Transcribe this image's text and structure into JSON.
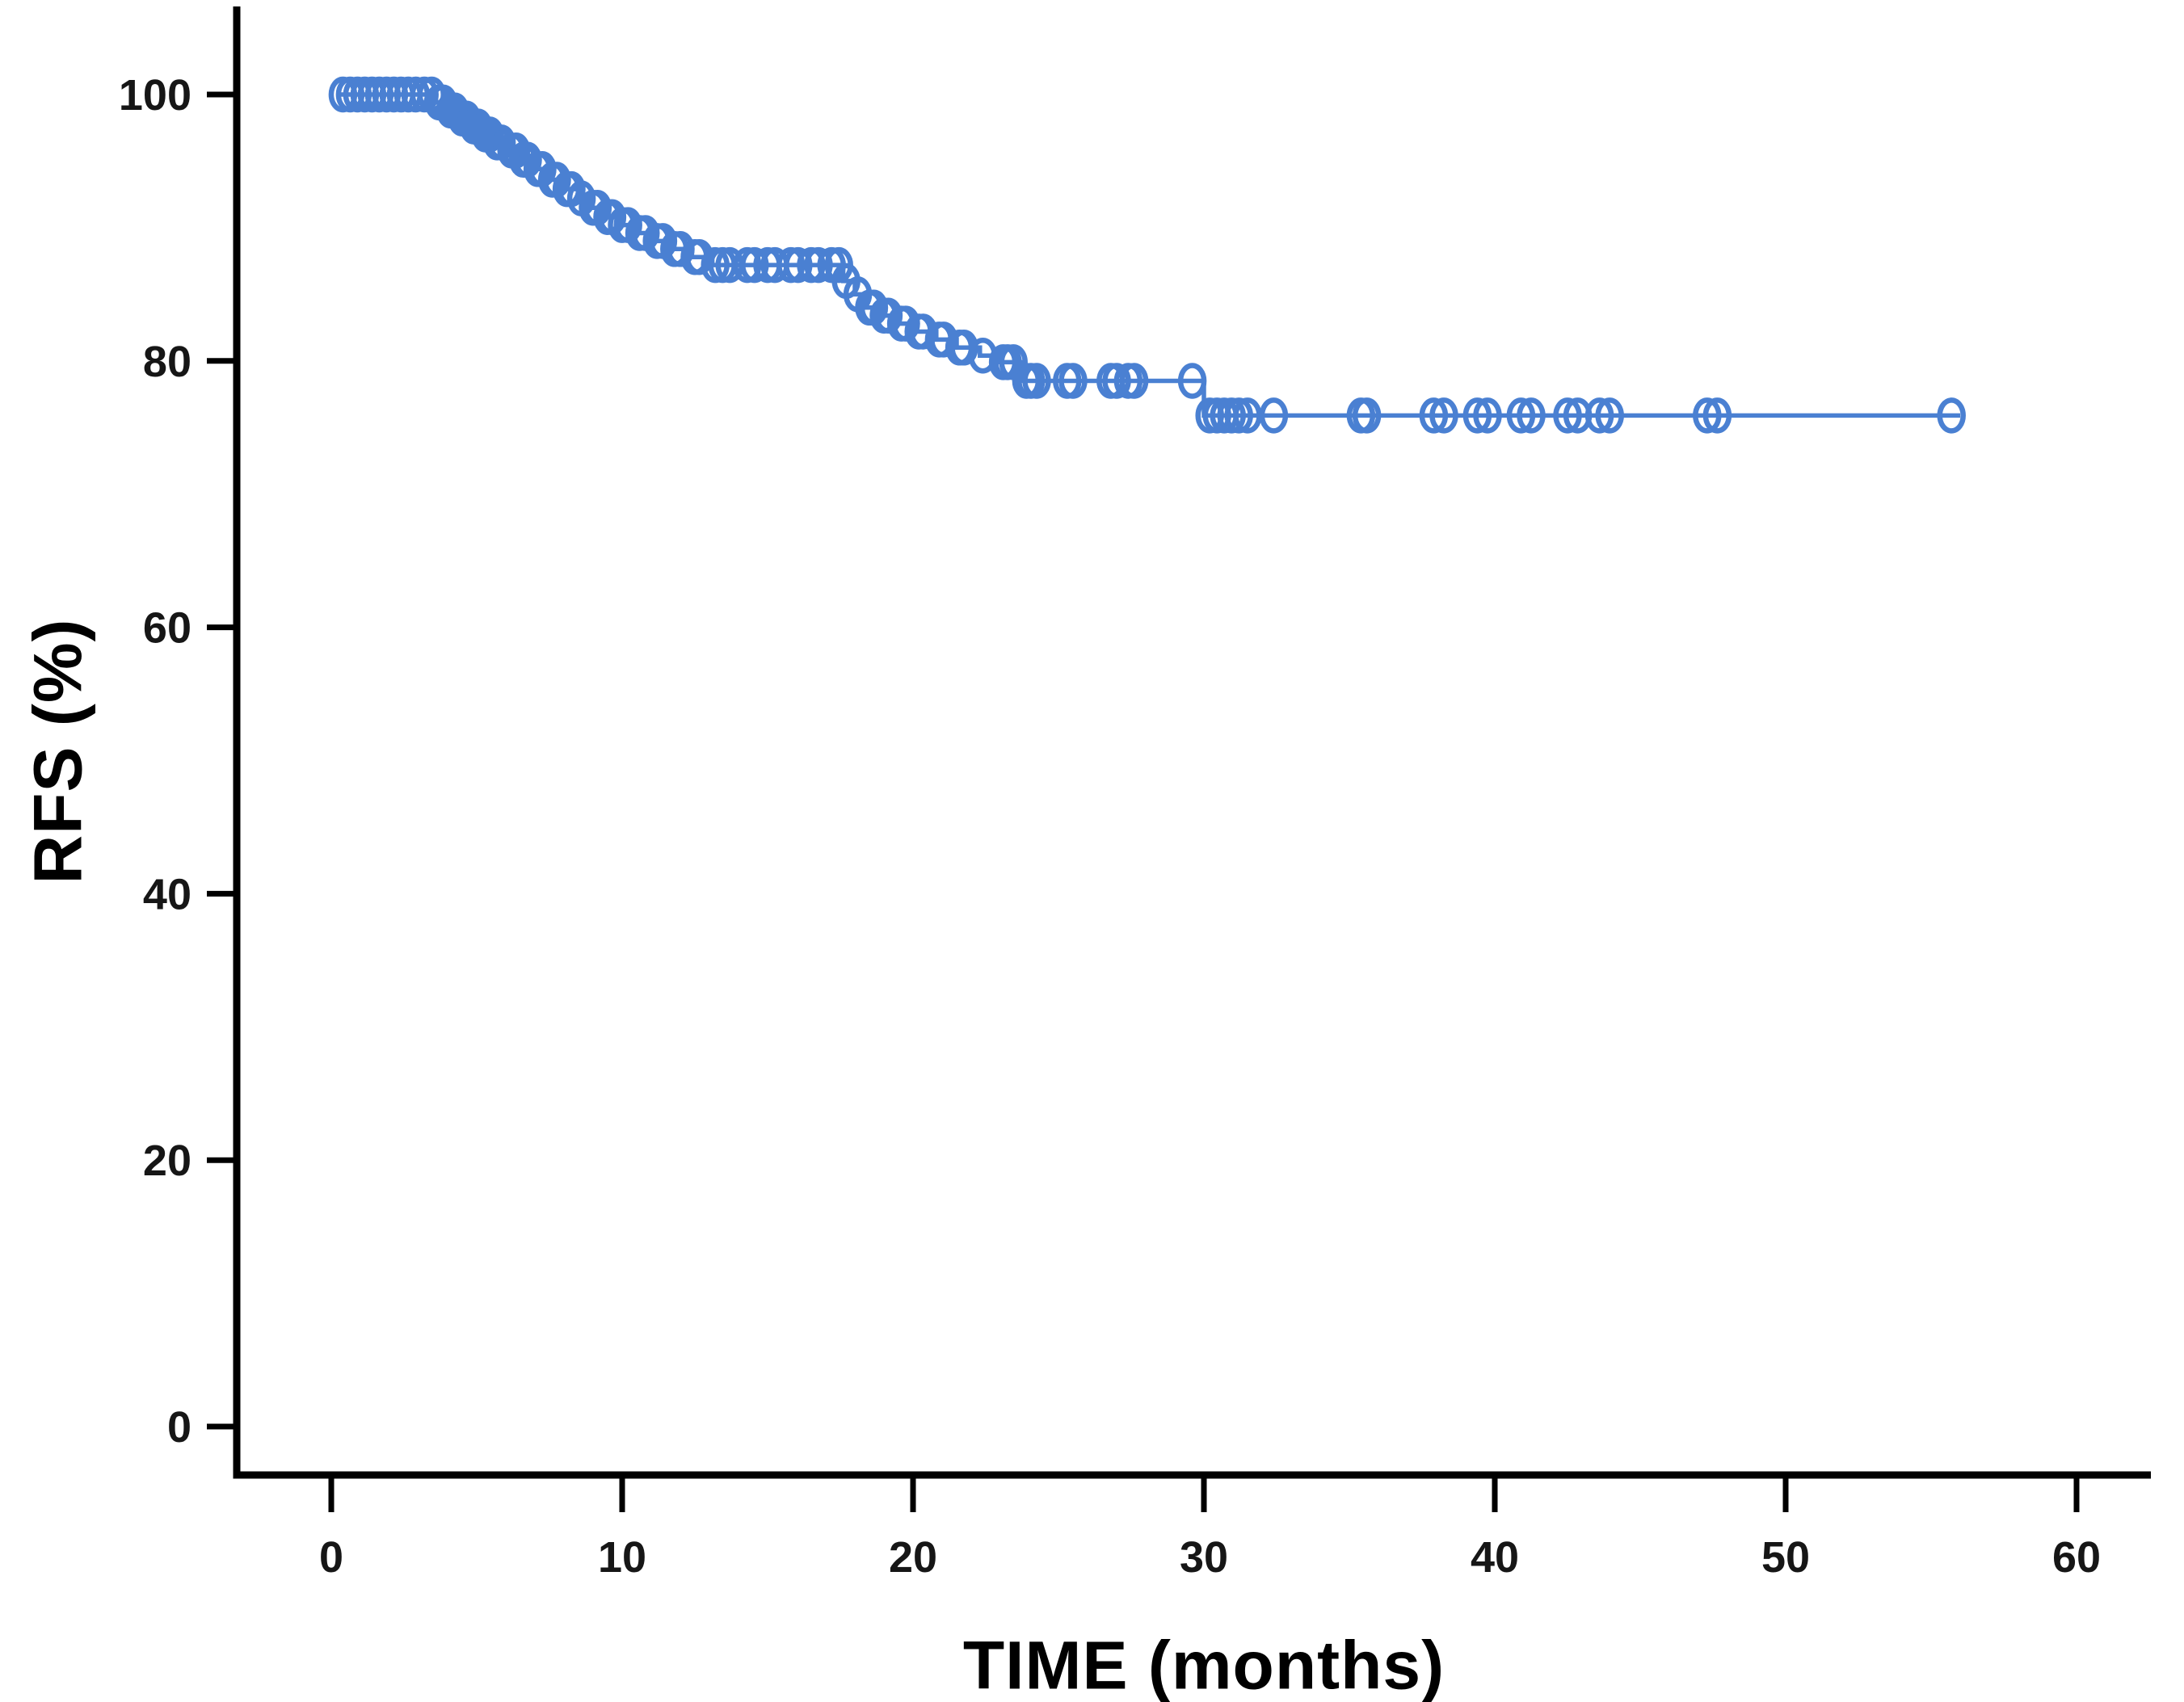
{
  "figure": {
    "background_color": "#ffffff",
    "axis_color": "#000000",
    "tick_label_color": "#161616"
  },
  "chart_data": {
    "type": "line",
    "subtype": "kaplan-meier-step-curve",
    "title": "",
    "xlabel": "TIME (months)",
    "ylabel": "RFS (%)",
    "x_ticks": [
      0,
      10,
      20,
      30,
      40,
      50,
      60
    ],
    "y_ticks": [
      0,
      20,
      40,
      60,
      80,
      100
    ],
    "xlim": [
      -3.3,
      62.5
    ],
    "ylim": [
      -3.6,
      106.5
    ],
    "grid": false,
    "legend": "none",
    "series_name": "RFS",
    "series_color": "#4a80d2",
    "marker": "open-circle-censor-mark",
    "curve_start_month": 0.3,
    "curve_end_month": 56.0,
    "steps": [
      [
        0.3,
        100
      ],
      [
        3.6,
        99.4
      ],
      [
        4.0,
        98.8
      ],
      [
        4.4,
        98.2
      ],
      [
        4.8,
        97.6
      ],
      [
        5.2,
        97.0
      ],
      [
        5.6,
        96.4
      ],
      [
        6.1,
        95.8
      ],
      [
        6.5,
        95.1
      ],
      [
        7.0,
        94.4
      ],
      [
        7.5,
        93.6
      ],
      [
        8.0,
        92.9
      ],
      [
        8.5,
        92.2
      ],
      [
        8.9,
        91.5
      ],
      [
        9.4,
        90.8
      ],
      [
        9.9,
        90.2
      ],
      [
        10.5,
        89.6
      ],
      [
        11.1,
        89.0
      ],
      [
        11.7,
        88.4
      ],
      [
        12.4,
        87.8
      ],
      [
        13.1,
        87.2
      ],
      [
        17.6,
        86.0
      ],
      [
        18.0,
        85.0
      ],
      [
        18.4,
        84.0
      ],
      [
        18.9,
        83.4
      ],
      [
        19.5,
        82.8
      ],
      [
        20.1,
        82.2
      ],
      [
        20.8,
        81.6
      ],
      [
        21.5,
        81.0
      ],
      [
        22.3,
        80.4
      ],
      [
        23.0,
        79.9
      ],
      [
        23.8,
        78.5
      ],
      [
        30.0,
        75.9
      ]
    ],
    "censor_marks": [
      [
        0.4,
        100
      ],
      [
        0.65,
        100
      ],
      [
        0.9,
        100
      ],
      [
        1.15,
        100
      ],
      [
        1.4,
        100
      ],
      [
        1.65,
        100
      ],
      [
        1.9,
        100
      ],
      [
        2.15,
        100
      ],
      [
        2.4,
        100
      ],
      [
        2.65,
        100
      ],
      [
        2.9,
        100
      ],
      [
        3.2,
        100
      ],
      [
        3.45,
        100
      ],
      [
        3.7,
        99.4
      ],
      [
        3.85,
        99.4
      ],
      [
        4.1,
        98.8
      ],
      [
        4.25,
        98.8
      ],
      [
        4.5,
        98.2
      ],
      [
        4.65,
        98.2
      ],
      [
        4.9,
        97.6
      ],
      [
        5.05,
        97.6
      ],
      [
        5.3,
        97.0
      ],
      [
        5.45,
        97.0
      ],
      [
        5.7,
        96.4
      ],
      [
        5.85,
        96.4
      ],
      [
        6.2,
        95.8
      ],
      [
        6.35,
        95.8
      ],
      [
        6.6,
        95.1
      ],
      [
        6.75,
        95.1
      ],
      [
        7.1,
        94.4
      ],
      [
        7.25,
        94.4
      ],
      [
        7.6,
        93.6
      ],
      [
        7.75,
        93.6
      ],
      [
        8.1,
        92.9
      ],
      [
        8.25,
        92.9
      ],
      [
        8.6,
        92.2
      ],
      [
        9.0,
        91.5
      ],
      [
        9.15,
        91.5
      ],
      [
        9.5,
        90.8
      ],
      [
        9.65,
        90.8
      ],
      [
        10.0,
        90.2
      ],
      [
        10.2,
        90.2
      ],
      [
        10.6,
        89.6
      ],
      [
        10.8,
        89.6
      ],
      [
        11.2,
        89.0
      ],
      [
        11.4,
        89.0
      ],
      [
        11.8,
        88.4
      ],
      [
        12.0,
        88.4
      ],
      [
        12.5,
        87.8
      ],
      [
        12.65,
        87.8
      ],
      [
        13.2,
        87.2
      ],
      [
        13.45,
        87.2
      ],
      [
        13.7,
        87.2
      ],
      [
        14.3,
        87.2
      ],
      [
        14.55,
        87.2
      ],
      [
        15.0,
        87.2
      ],
      [
        15.25,
        87.2
      ],
      [
        15.8,
        87.2
      ],
      [
        16.05,
        87.2
      ],
      [
        16.5,
        87.2
      ],
      [
        16.75,
        87.2
      ],
      [
        17.2,
        87.2
      ],
      [
        17.45,
        87.2
      ],
      [
        17.7,
        86.0
      ],
      [
        18.1,
        85.0
      ],
      [
        18.5,
        84.0
      ],
      [
        18.65,
        84.0
      ],
      [
        19.0,
        83.4
      ],
      [
        19.15,
        83.4
      ],
      [
        19.6,
        82.8
      ],
      [
        19.75,
        82.8
      ],
      [
        20.2,
        82.2
      ],
      [
        20.35,
        82.2
      ],
      [
        20.9,
        81.6
      ],
      [
        21.05,
        81.6
      ],
      [
        21.6,
        81.0
      ],
      [
        21.75,
        81.0
      ],
      [
        22.4,
        80.4
      ],
      [
        23.1,
        79.9
      ],
      [
        23.25,
        79.9
      ],
      [
        23.45,
        79.9
      ],
      [
        23.9,
        78.5
      ],
      [
        24.05,
        78.5
      ],
      [
        24.25,
        78.5
      ],
      [
        25.3,
        78.5
      ],
      [
        25.5,
        78.5
      ],
      [
        26.8,
        78.5
      ],
      [
        27.0,
        78.5
      ],
      [
        27.4,
        78.5
      ],
      [
        27.6,
        78.5
      ],
      [
        29.6,
        78.5
      ],
      [
        30.2,
        75.9
      ],
      [
        30.45,
        75.9
      ],
      [
        30.7,
        75.9
      ],
      [
        30.95,
        75.9
      ],
      [
        31.2,
        75.9
      ],
      [
        31.5,
        75.9
      ],
      [
        32.4,
        75.9
      ],
      [
        35.4,
        75.9
      ],
      [
        35.6,
        75.9
      ],
      [
        37.9,
        75.9
      ],
      [
        38.25,
        75.9
      ],
      [
        39.4,
        75.9
      ],
      [
        39.75,
        75.9
      ],
      [
        40.9,
        75.9
      ],
      [
        41.25,
        75.9
      ],
      [
        42.5,
        75.9
      ],
      [
        42.85,
        75.9
      ],
      [
        43.6,
        75.9
      ],
      [
        43.95,
        75.9
      ],
      [
        47.3,
        75.9
      ],
      [
        47.65,
        75.9
      ],
      [
        55.7,
        75.9
      ]
    ]
  }
}
